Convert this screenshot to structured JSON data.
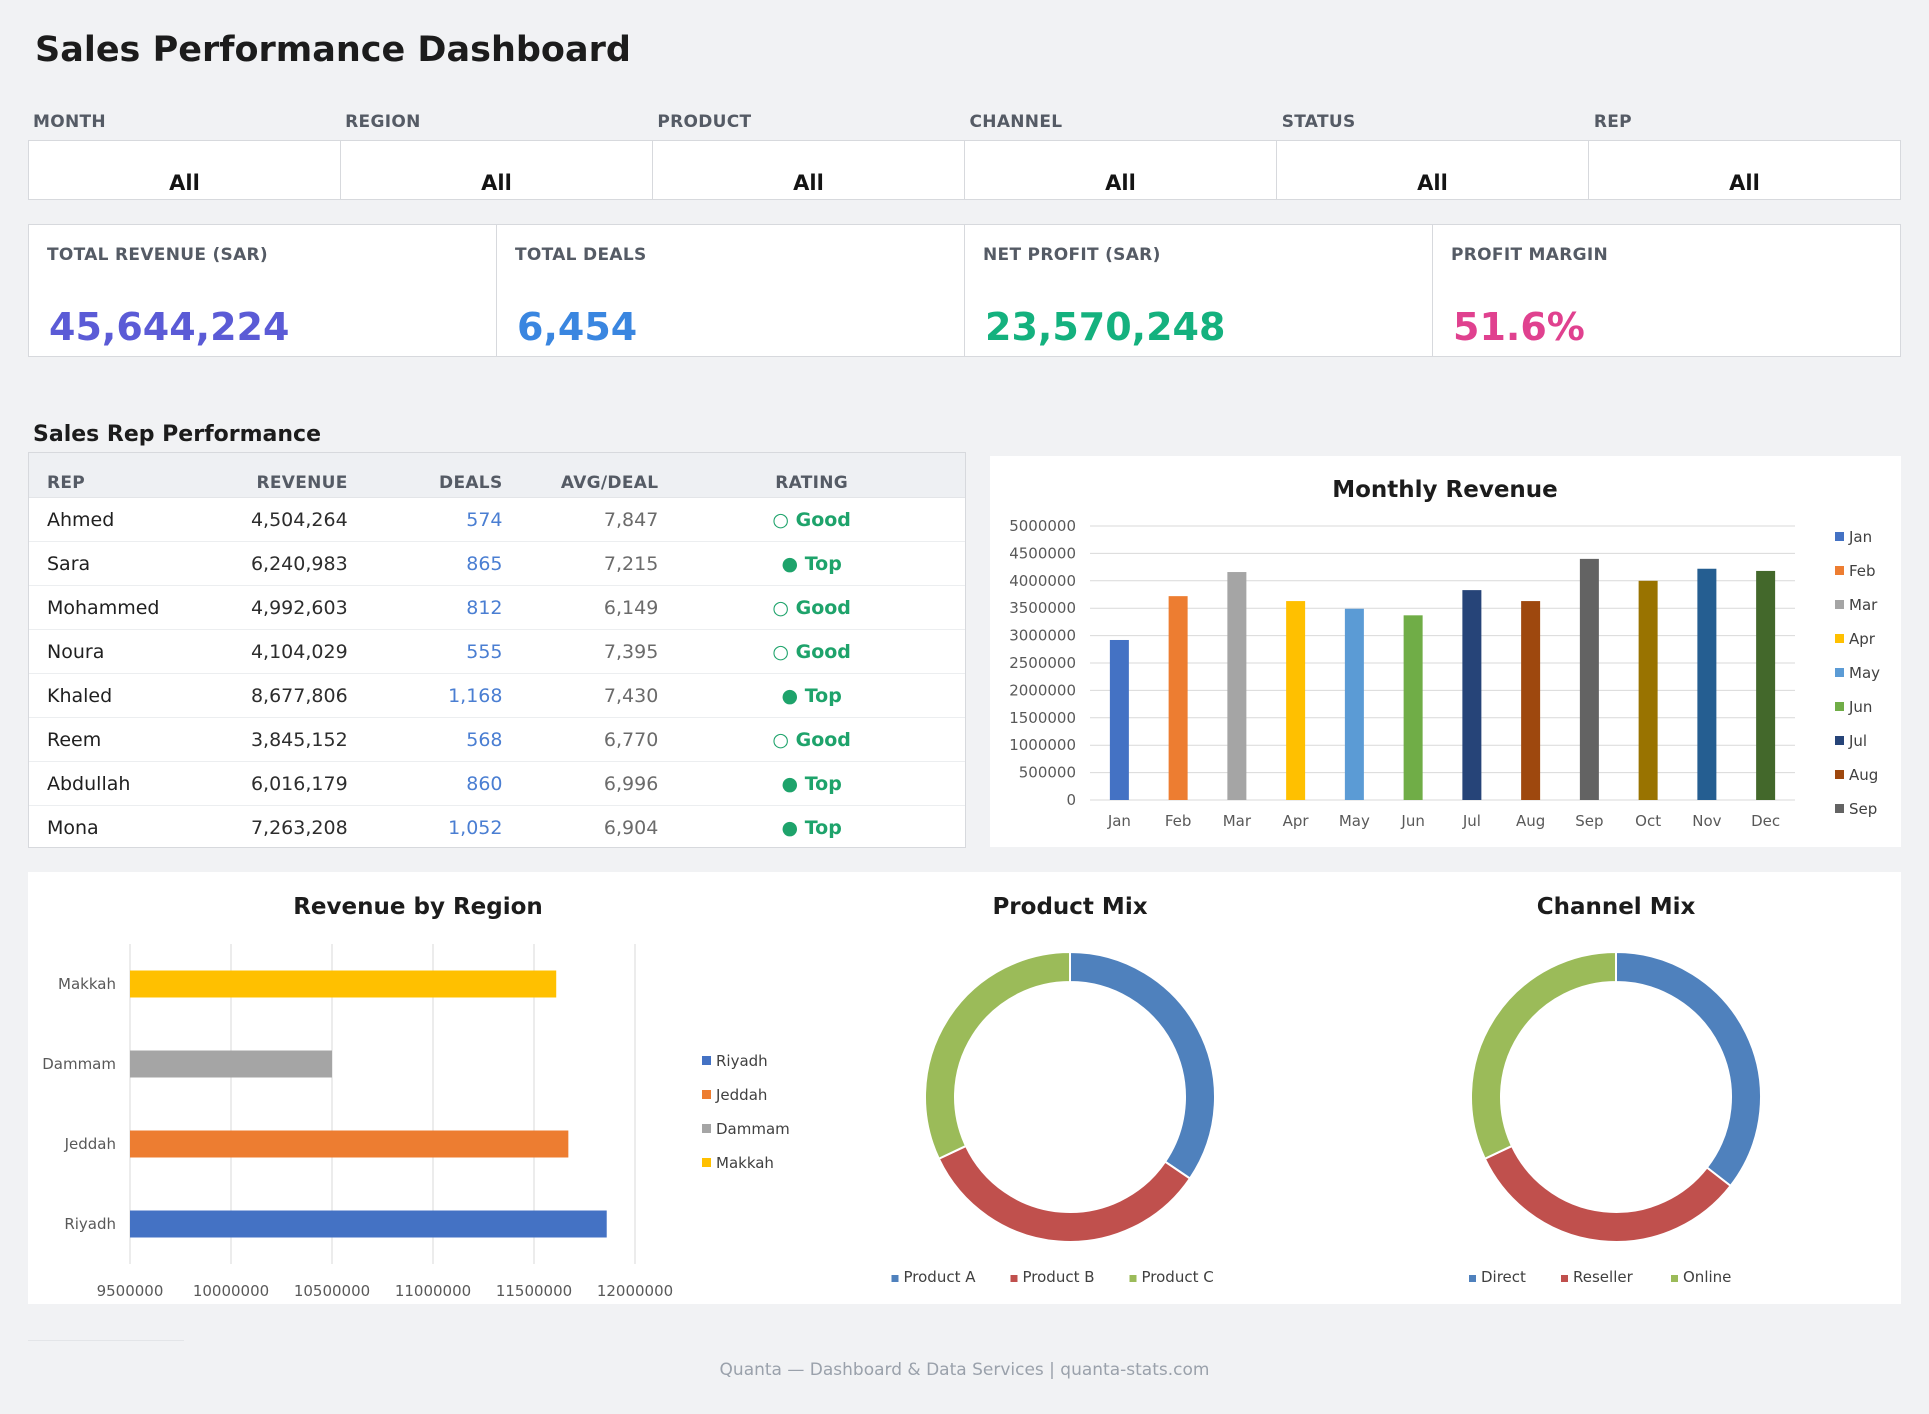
{
  "title": "Sales Performance Dashboard",
  "filters": [
    {
      "label": "MONTH",
      "value": "All"
    },
    {
      "label": "REGION",
      "value": "All"
    },
    {
      "label": "PRODUCT",
      "value": "All"
    },
    {
      "label": "CHANNEL",
      "value": "All"
    },
    {
      "label": "STATUS",
      "value": "All"
    },
    {
      "label": "REP",
      "value": "All"
    }
  ],
  "kpis": [
    {
      "label": "TOTAL REVENUE (SAR)",
      "value": "45,644,224",
      "color": "#5b5bd6"
    },
    {
      "label": "TOTAL DEALS",
      "value": "6,454",
      "color": "#3a86e0"
    },
    {
      "label": "NET PROFIT (SAR)",
      "value": "23,570,248",
      "color": "#14b17e"
    },
    {
      "label": "PROFIT MARGIN",
      "value": "51.6%",
      "color": "#e0418f"
    }
  ],
  "rep_table": {
    "title": "Sales Rep Performance",
    "headers": [
      "REP",
      "REVENUE",
      "DEALS",
      "AVG/DEAL",
      "RATING"
    ],
    "rows": [
      {
        "rep": "Ahmed",
        "revenue": "4,504,264",
        "deals": "574",
        "avg": "7,847",
        "rating": "○ Good"
      },
      {
        "rep": "Sara",
        "revenue": "6,240,983",
        "deals": "865",
        "avg": "7,215",
        "rating": "● Top"
      },
      {
        "rep": "Mohammed",
        "revenue": "4,992,603",
        "deals": "812",
        "avg": "6,149",
        "rating": "○ Good"
      },
      {
        "rep": "Noura",
        "revenue": "4,104,029",
        "deals": "555",
        "avg": "7,395",
        "rating": "○ Good"
      },
      {
        "rep": "Khaled",
        "revenue": "8,677,806",
        "deals": "1,168",
        "avg": "7,430",
        "rating": "● Top"
      },
      {
        "rep": "Reem",
        "revenue": "3,845,152",
        "deals": "568",
        "avg": "6,770",
        "rating": "○ Good"
      },
      {
        "rep": "Abdullah",
        "revenue": "6,016,179",
        "deals": "860",
        "avg": "6,996",
        "rating": "● Top"
      },
      {
        "rep": "Mona",
        "revenue": "7,263,208",
        "deals": "1,052",
        "avg": "6,904",
        "rating": "● Top"
      }
    ]
  },
  "chart_data": [
    {
      "type": "bar",
      "title": "Monthly Revenue",
      "categories": [
        "Jan",
        "Feb",
        "Mar",
        "Apr",
        "May",
        "Jun",
        "Jul",
        "Aug",
        "Sep",
        "Oct",
        "Nov",
        "Dec"
      ],
      "values": [
        2920000,
        3720000,
        4160000,
        3630000,
        3490000,
        3370000,
        3830000,
        3630000,
        4400000,
        4000000,
        4220000,
        4180000
      ],
      "colors": [
        "#4472c4",
        "#ed7d31",
        "#a5a5a5",
        "#ffc000",
        "#5b9bd5",
        "#70ad47",
        "#264478",
        "#9e480e",
        "#636363",
        "#997300",
        "#255e91",
        "#43682b"
      ],
      "ylim": [
        0,
        5000000
      ],
      "yticks": [
        "5000000",
        "4500000",
        "4000000",
        "3500000",
        "3000000",
        "2500000",
        "2000000",
        "1500000",
        "1000000",
        "500000",
        "0"
      ],
      "legend": [
        "Jan",
        "Feb",
        "Mar",
        "Apr",
        "May",
        "Jun",
        "Jul",
        "Aug",
        "Sep"
      ],
      "legend_position": "right",
      "grid": true
    },
    {
      "type": "bar",
      "orientation": "horizontal",
      "title": "Revenue by Region",
      "categories": [
        "Riyadh",
        "Jeddah",
        "Dammam",
        "Makkah"
      ],
      "values": [
        11860000,
        11670000,
        10500000,
        11610000
      ],
      "colors": [
        "#4472c4",
        "#ed7d31",
        "#a5a5a5",
        "#ffc000"
      ],
      "xlim": [
        9500000,
        12000000
      ],
      "xticks": [
        "9500000",
        "10000000",
        "10500000",
        "11000000",
        "11500000",
        "12000000"
      ],
      "legend": [
        "Riyadh",
        "Jeddah",
        "Dammam",
        "Makkah"
      ],
      "legend_position": "right",
      "grid": true
    },
    {
      "type": "pie",
      "donut": true,
      "title": "Product Mix",
      "labels": [
        "Product A",
        "Product B",
        "Product C"
      ],
      "values": [
        34.5,
        33.5,
        32.0
      ],
      "colors": [
        "#4f81bd",
        "#c0504d",
        "#9bbb59"
      ],
      "legend_position": "bottom"
    },
    {
      "type": "pie",
      "donut": true,
      "title": "Channel Mix",
      "labels": [
        "Direct",
        "Reseller",
        "Online"
      ],
      "values": [
        35.5,
        32.5,
        32.0
      ],
      "colors": [
        "#4f81bd",
        "#c0504d",
        "#9bbb59"
      ],
      "legend_position": "bottom"
    }
  ],
  "footer": "Quanta — Dashboard & Data Services  |  quanta-stats.com"
}
